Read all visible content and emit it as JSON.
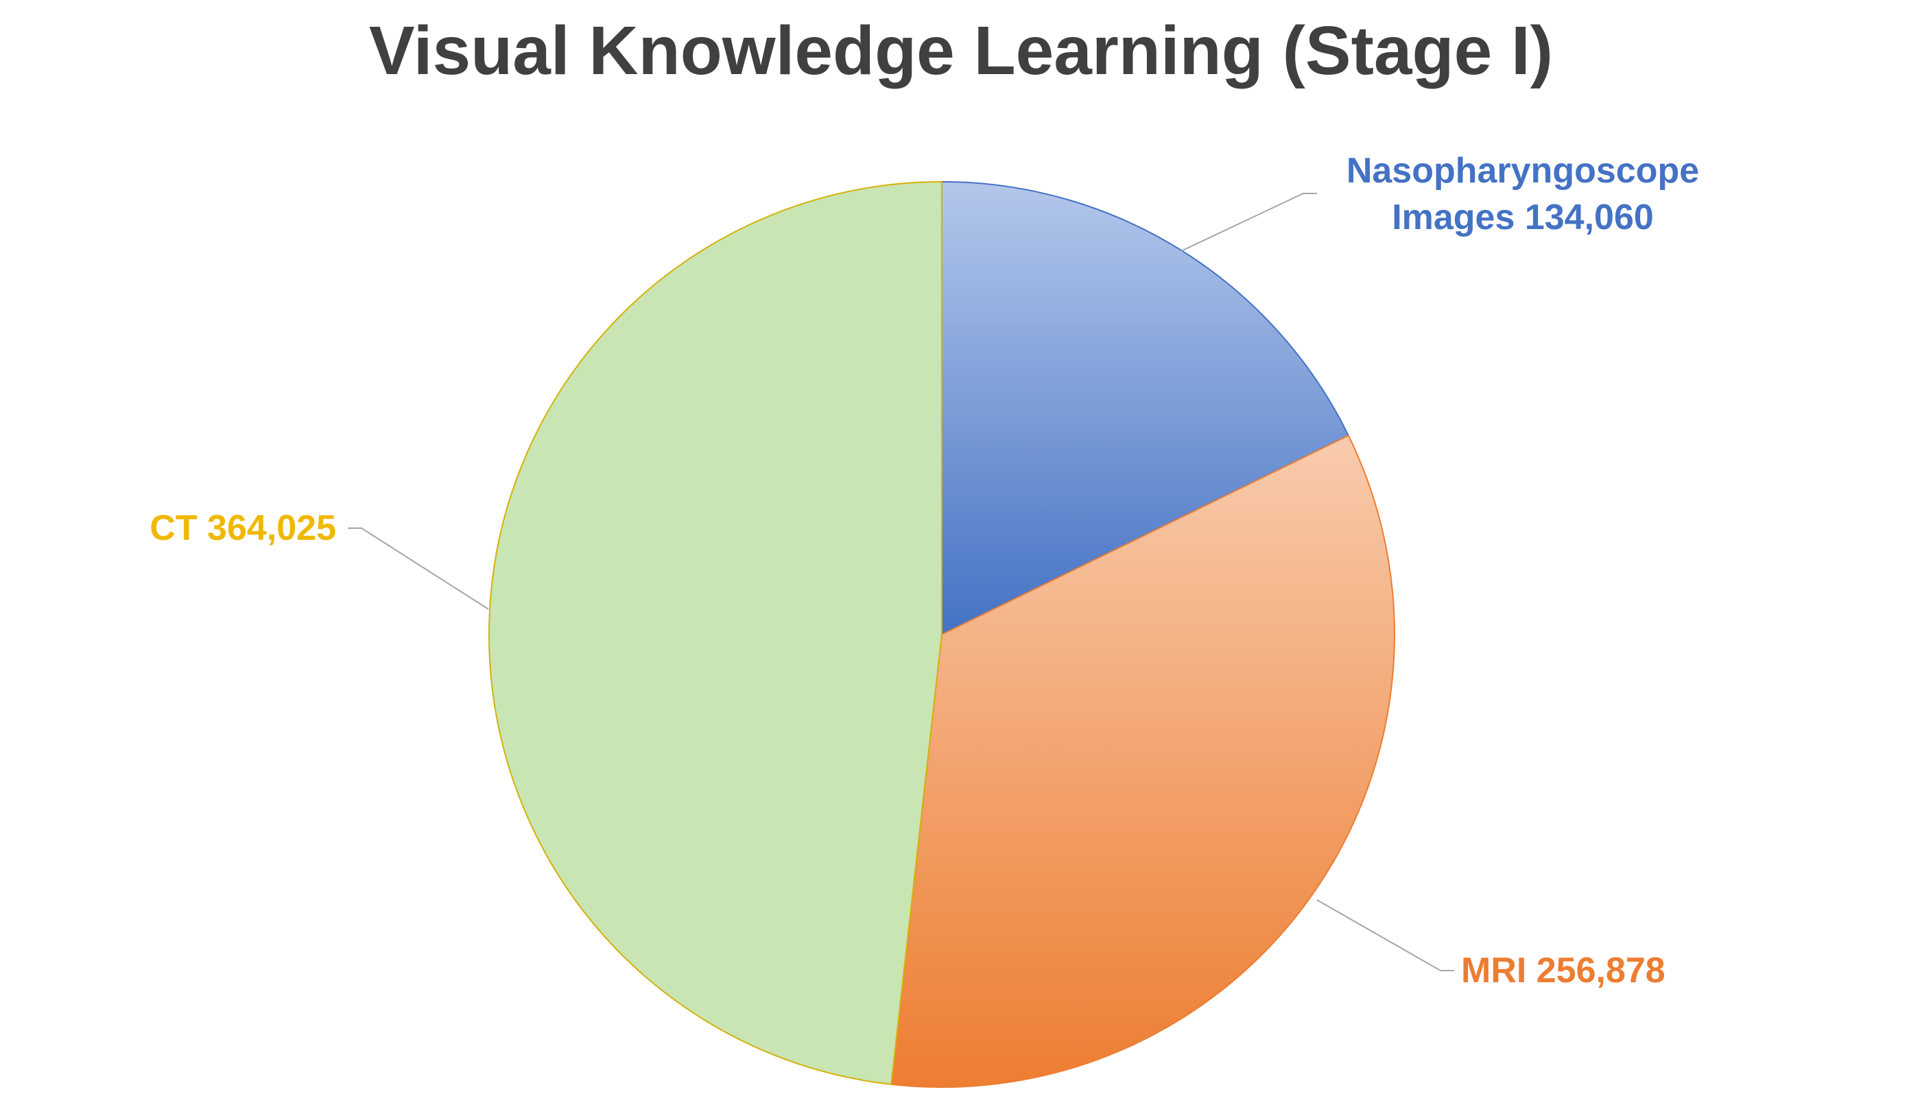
{
  "chart_data": {
    "type": "pie",
    "title": "Visual Knowledge Learning (Stage I)",
    "slices": [
      {
        "category": "Nasopharyngoscope Images",
        "value": 134060,
        "label_lines": [
          "Nasopharyngoscope",
          "Images 134,060"
        ],
        "color": "#4472C4",
        "gradient_top": "#B4C7EB",
        "label_color": "#4472C4",
        "label_position": "top-right"
      },
      {
        "category": "MRI",
        "value": 256878,
        "label_lines": [
          "MRI 256,878"
        ],
        "color": "#ED7D31",
        "gradient_top": "#F8CBAD",
        "label_color": "#ED7D31",
        "label_position": "bottom-right"
      },
      {
        "category": "CT",
        "value": 364025,
        "label_lines": [
          "CT 364,025"
        ],
        "color": "#C9E5B3",
        "gradient_top": "#C9E5B3",
        "label_color": "#F0B800",
        "stroke": "#D4B20A",
        "label_position": "left"
      }
    ],
    "start_angle": "12 o'clock",
    "direction": "clockwise",
    "legend": "none",
    "leader_line_color": "#A6A6A6"
  }
}
